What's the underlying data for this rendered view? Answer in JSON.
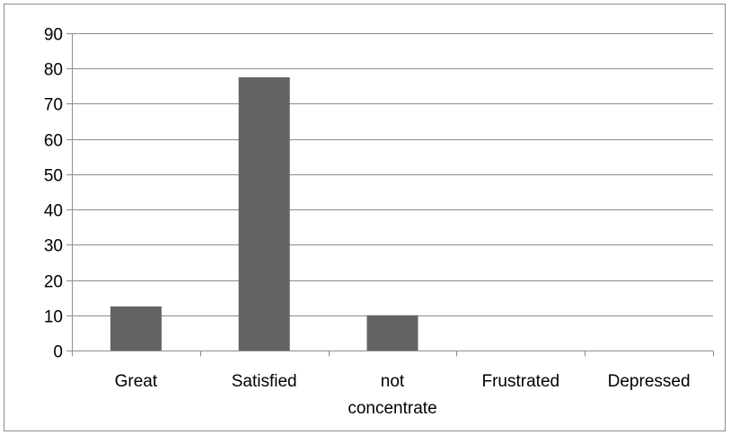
{
  "chart_data": {
    "type": "bar",
    "categories": [
      "Great",
      "Satisfied",
      "not concentrate",
      "Frustrated",
      "Depressed"
    ],
    "category_lines": [
      [
        "Great"
      ],
      [
        "Satisfied"
      ],
      [
        "not",
        "concentrate"
      ],
      [
        "Frustrated"
      ],
      [
        "Depressed"
      ]
    ],
    "values": [
      12.5,
      77.5,
      10,
      0,
      0
    ],
    "ylim": [
      0,
      90
    ],
    "yticks": [
      0,
      10,
      20,
      30,
      40,
      50,
      60,
      70,
      80,
      90
    ],
    "grid": true,
    "legend": "none",
    "title": "",
    "xlabel": "",
    "ylabel": "",
    "bar_color": "#636363",
    "grid_color": "#8c8c8c"
  }
}
